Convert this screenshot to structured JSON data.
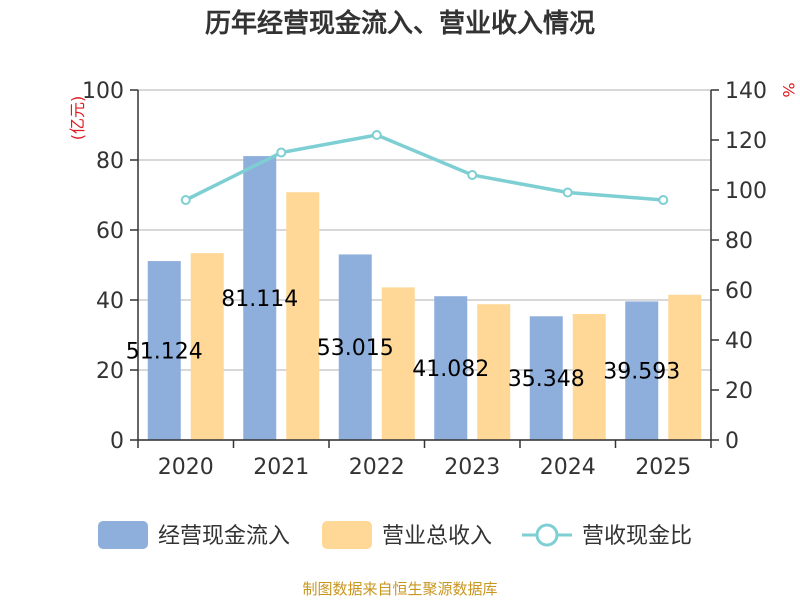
{
  "chart_data": {
    "type": "bar",
    "title": "历年经营现金流入、营业收入情况",
    "categories": [
      "2020",
      "2021",
      "2022",
      "2023",
      "2024",
      "2025"
    ],
    "series": [
      {
        "name": "经营现金流入",
        "type": "bar",
        "axis": "left",
        "color": "#8eaedb",
        "values": [
          51.124,
          81.114,
          53.015,
          41.082,
          35.348,
          39.593
        ]
      },
      {
        "name": "营业总收入",
        "type": "bar",
        "axis": "left",
        "color": "#ffd898",
        "values": [
          53.4,
          70.8,
          43.6,
          38.8,
          36.0,
          41.5
        ]
      },
      {
        "name": "营收现金比",
        "type": "line",
        "axis": "right",
        "color": "#7ecfd4",
        "values": [
          96,
          115,
          122,
          106,
          99,
          96
        ]
      }
    ],
    "data_labels": [
      "51.124",
      "81.114",
      "53.015",
      "41.082",
      "35.348",
      "39.593"
    ],
    "left_axis": {
      "label": "(亿元)",
      "min": 0,
      "max": 100,
      "ticks": [
        0,
        20,
        40,
        60,
        80,
        100
      ]
    },
    "right_axis": {
      "label": "%",
      "min": 0,
      "max": 140,
      "ticks": [
        0,
        20,
        40,
        60,
        80,
        100,
        120,
        140
      ]
    },
    "grid": true,
    "legend_position": "bottom"
  },
  "source_text": "制图数据来自恒生聚源数据库"
}
